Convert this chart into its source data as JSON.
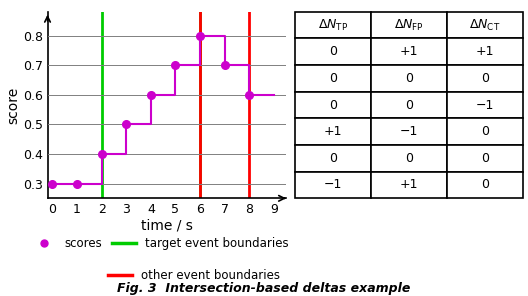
{
  "score_x": [
    0,
    1,
    2,
    3,
    4,
    5,
    6,
    7,
    8
  ],
  "score_y": [
    0.3,
    0.3,
    0.4,
    0.5,
    0.6,
    0.7,
    0.8,
    0.7,
    0.6
  ],
  "step_x": [
    0,
    1,
    2,
    2,
    3,
    3,
    4,
    4,
    5,
    5,
    6,
    6,
    7,
    7,
    8,
    8,
    9
  ],
  "step_y": [
    0.3,
    0.3,
    0.3,
    0.4,
    0.4,
    0.5,
    0.5,
    0.6,
    0.6,
    0.7,
    0.7,
    0.8,
    0.8,
    0.7,
    0.7,
    0.6,
    0.6
  ],
  "score_color": "#CC00CC",
  "green_lines": [
    2,
    6
  ],
  "red_lines": [
    6,
    8
  ],
  "ylim": [
    0.25,
    0.88
  ],
  "xlim": [
    -0.2,
    9.5
  ],
  "yticks": [
    0.3,
    0.4,
    0.5,
    0.6,
    0.7,
    0.8
  ],
  "xticks": [
    0,
    1,
    2,
    3,
    4,
    5,
    6,
    7,
    8,
    9
  ],
  "ylabel": "score",
  "xlabel": "time / s",
  "table_data": [
    [
      "0",
      "+1",
      "+1"
    ],
    [
      "0",
      "0",
      "0"
    ],
    [
      "0",
      "0",
      "−1"
    ],
    [
      "+1",
      "−1",
      "0"
    ],
    [
      "0",
      "0",
      "0"
    ],
    [
      "−1",
      "+1",
      "0"
    ]
  ],
  "fig_caption": "Fig. 3  Intersection-based deltas example",
  "legend_scores_label": "scores",
  "legend_green_label": "target event boundaries",
  "legend_red_label": "other event boundaries",
  "green_color": "#00CC00",
  "red_color": "#FF0000"
}
